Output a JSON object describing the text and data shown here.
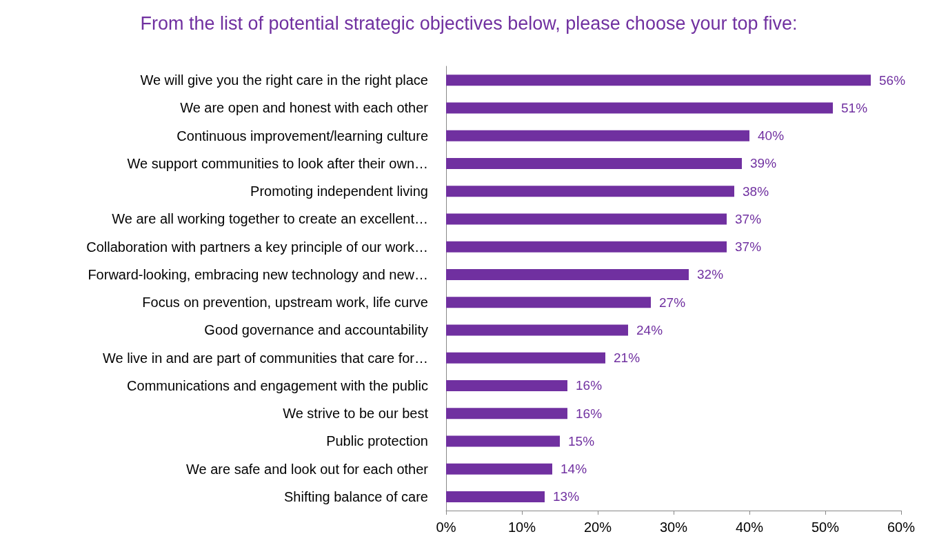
{
  "chart_data": {
    "type": "bar",
    "orientation": "horizontal",
    "title": "From the list of potential strategic objectives below, please choose your top five:",
    "categories": [
      "We will give you the right care in the right place",
      "We are open and honest with each other",
      "Continuous improvement/learning culture",
      "We support communities to look after their own…",
      "Promoting independent living",
      "We are all working together to create an excellent…",
      "Collaboration with partners a key principle of our work…",
      "Forward-looking, embracing new technology and new…",
      "Focus on prevention, upstream work, life curve",
      "Good governance and accountability",
      "We live in and are part of communities that care for…",
      "Communications and engagement with the public",
      "We strive to be our best",
      "Public protection",
      "We are safe and look out for each other",
      "Shifting balance of care"
    ],
    "values": [
      56,
      51,
      40,
      39,
      38,
      37,
      37,
      32,
      27,
      24,
      21,
      16,
      16,
      15,
      14,
      13
    ],
    "value_labels": [
      "56%",
      "51%",
      "40%",
      "39%",
      "38%",
      "37%",
      "37%",
      "32%",
      "27%",
      "24%",
      "21%",
      "16%",
      "16%",
      "15%",
      "14%",
      "13%"
    ],
    "color": "#7030a0",
    "xlim": [
      0,
      60
    ],
    "xticks": [
      {
        "value": 0,
        "label": "0%"
      },
      {
        "value": 10,
        "label": "10%"
      },
      {
        "value": 20,
        "label": "20%"
      },
      {
        "value": 30,
        "label": "30%"
      },
      {
        "value": 40,
        "label": "40%"
      },
      {
        "value": 50,
        "label": "50%"
      },
      {
        "value": 60,
        "label": "60%"
      }
    ],
    "grid": false
  }
}
